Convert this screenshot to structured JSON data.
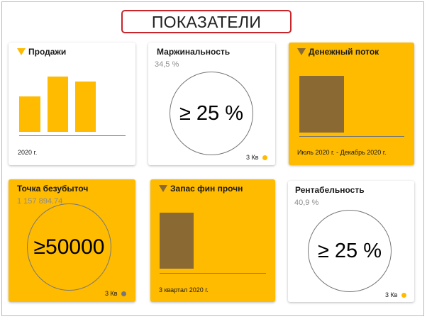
{
  "header": {
    "title": "ПОКАЗАТЕЛИ"
  },
  "cards": {
    "sales": {
      "title": "Продажи",
      "period": "2020 г.",
      "icon": "triangle-down-icon",
      "colors": {
        "bg": "#ffffff",
        "bars": "#ffbb00",
        "marker": "#ffbb00"
      }
    },
    "margin": {
      "title": "Маржинальность",
      "value": "34,5 %",
      "target": "≥ 25 %",
      "period": "3 Кв",
      "status_color": "#ffbb00"
    },
    "cashflow": {
      "title": "Денежный поток",
      "period": "Июль 2020 г. - Декабрь 2020 г.",
      "icon": "triangle-down-icon",
      "colors": {
        "bg": "#ffbb00",
        "bars": "#8a6a32",
        "marker": "#8a6a32"
      }
    },
    "breakeven": {
      "title": "Точка безубыточ",
      "value": "1 157 894.74",
      "target": "≥50000",
      "period": "3 Кв",
      "status_color": "#777777"
    },
    "reserve": {
      "title": "Запас фин прочн",
      "period": "3 квартал 2020 г.",
      "icon": "triangle-down-icon",
      "colors": {
        "bg": "#ffbb00",
        "bars": "#8a6a32",
        "marker": "#8a6a32"
      }
    },
    "profitability": {
      "title": "Рентабельность",
      "value": "40,9 %",
      "target": "≥ 25 %",
      "period": "3 Кв",
      "status_color": "#ffbb00"
    }
  }
}
